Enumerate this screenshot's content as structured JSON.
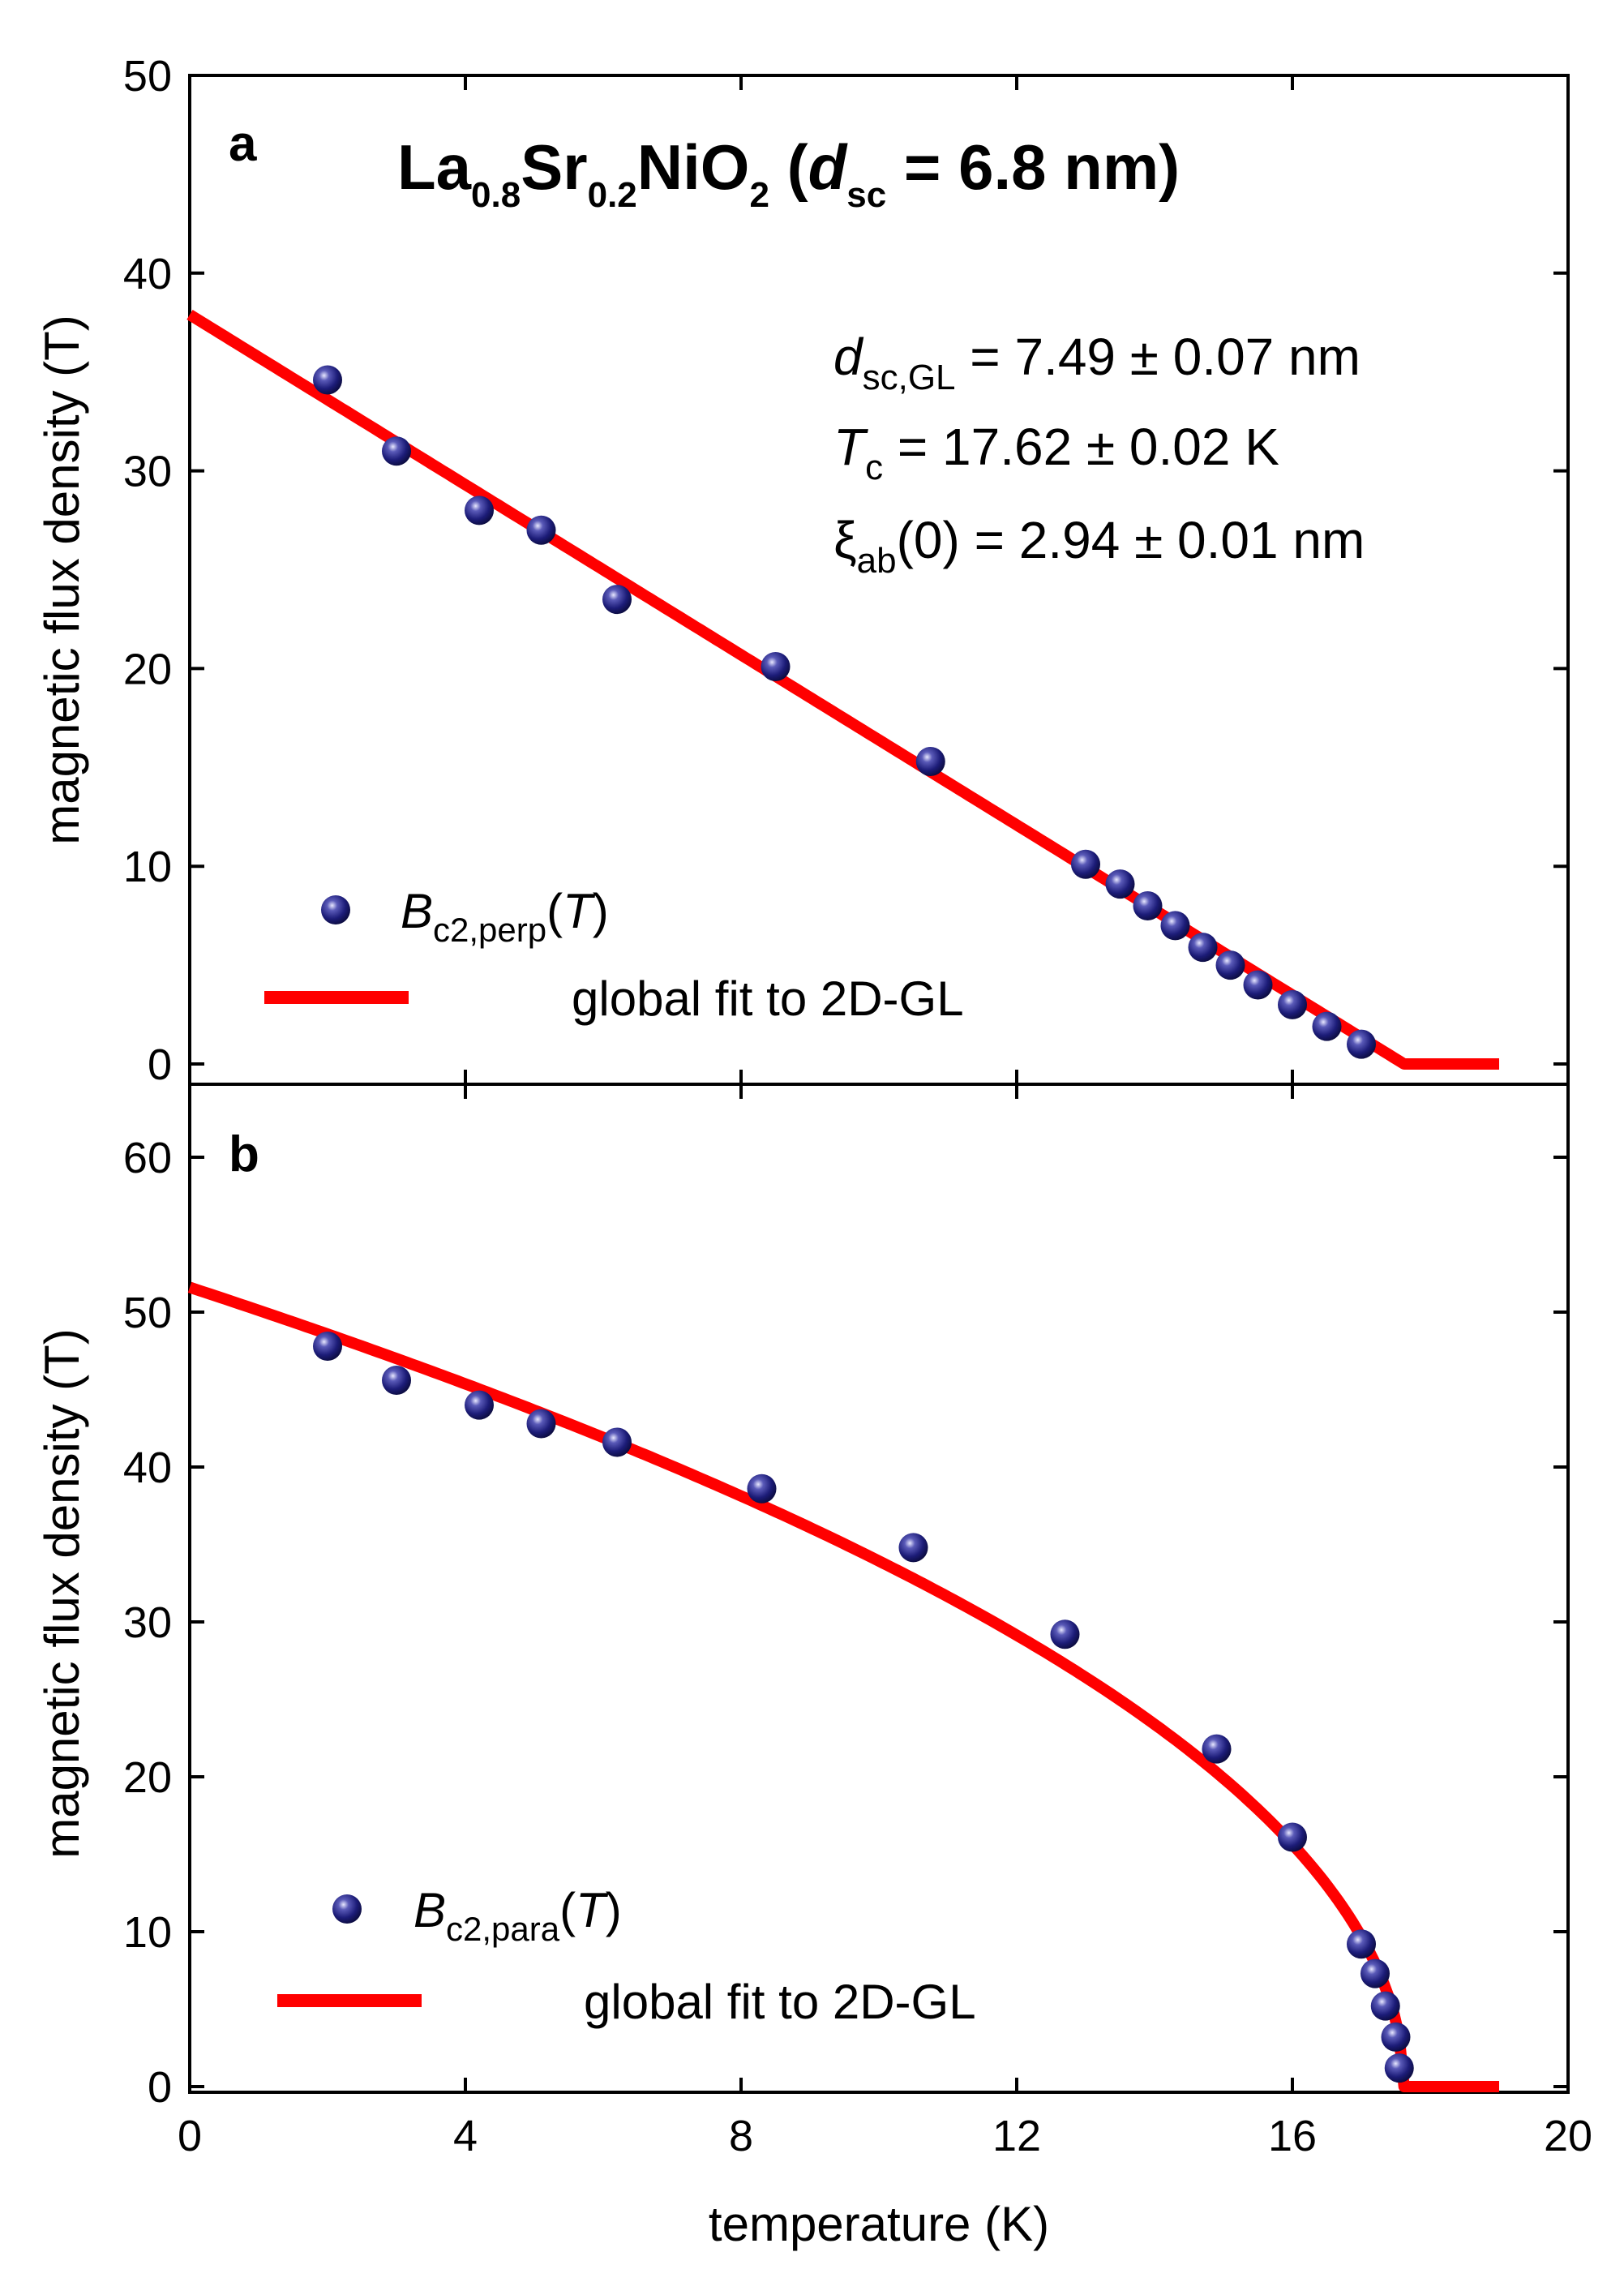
{
  "chart_data": [
    {
      "type": "scatter",
      "panel": "a",
      "title": {
        "p1": "La",
        "p1_sub": "0.8",
        "p2": "Sr",
        "p2_sub": "0.2",
        "p3": "NiO",
        "p3_sub": "2",
        "p4": " (",
        "p5": "d",
        "p5_sub": "sc",
        "p6": " = 6.8 nm)"
      },
      "xlabel": "temperature (K)",
      "ylabel": "magnetic flux density (T)",
      "xlim": [
        0,
        20
      ],
      "ylim": [
        0,
        50
      ],
      "xticks": [
        "0",
        "4",
        "8",
        "12",
        "16",
        "20"
      ],
      "yticks": [
        "0",
        "10",
        "20",
        "30",
        "40",
        "50"
      ],
      "params": [
        {
          "sym": "d",
          "sub": "sc,GL",
          "text": " = 7.49 ± 0.07 nm"
        },
        {
          "sym": "T",
          "sub": "c",
          "text": " = 17.62 ± 0.02 K"
        },
        {
          "sym": "ξ",
          "sub": "ab",
          "text": "(0) = 2.94 ± 0.01 nm"
        }
      ],
      "series": [
        {
          "name": "B_c2,perp(T)",
          "legend": {
            "pre": "B",
            "sub": "c2,perp",
            "open": "(",
            "var": "T",
            "close": ")"
          },
          "color": "#1a1a6e",
          "x": [
            2.0,
            3.0,
            4.2,
            5.1,
            6.2,
            8.5,
            10.75,
            13.0,
            13.5,
            13.9,
            14.3,
            14.7,
            15.1,
            15.5,
            16.0,
            16.5,
            17.0
          ],
          "values": [
            34.6,
            31.0,
            28.0,
            27.0,
            23.5,
            20.1,
            15.3,
            10.1,
            9.1,
            8.0,
            7.0,
            5.9,
            5.0,
            4.0,
            3.0,
            1.9,
            1.0
          ]
        },
        {
          "name": "global fit to 2D-GL",
          "legend": {
            "text": "global fit to 2D-GL"
          },
          "color": "#ff0000",
          "Tc": 17.62,
          "B0": 37.9,
          "x_end": 19.0,
          "form": "linear"
        }
      ]
    },
    {
      "type": "scatter",
      "panel": "b",
      "xlabel": "temperature (K)",
      "ylabel": "magnetic flux density (T)",
      "xlim": [
        0,
        20
      ],
      "ylim": [
        0,
        65
      ],
      "xticks": [
        "0",
        "4",
        "8",
        "12",
        "16",
        "20"
      ],
      "yticks": [
        "0",
        "10",
        "20",
        "30",
        "40",
        "50",
        "60"
      ],
      "series": [
        {
          "name": "B_c2,para(T)",
          "legend": {
            "pre": "B",
            "sub": "c2,para",
            "open": "(",
            "var": "T",
            "close": ")"
          },
          "color": "#1a1a6e",
          "x": [
            2.0,
            3.0,
            4.2,
            5.1,
            6.2,
            8.3,
            10.5,
            12.7,
            14.9,
            16.0,
            17.0,
            17.2,
            17.35,
            17.5,
            17.55
          ],
          "values": [
            47.8,
            45.6,
            44.0,
            42.8,
            41.6,
            38.6,
            34.8,
            29.2,
            21.8,
            16.1,
            9.2,
            7.3,
            5.2,
            3.2,
            1.2
          ]
        },
        {
          "name": "global fit to 2D-GL",
          "legend": {
            "text": "global fit to 2D-GL"
          },
          "color": "#ff0000",
          "Tc": 17.62,
          "B0": 51.6,
          "x_end": 19.0,
          "form": "sqrt"
        }
      ]
    }
  ]
}
